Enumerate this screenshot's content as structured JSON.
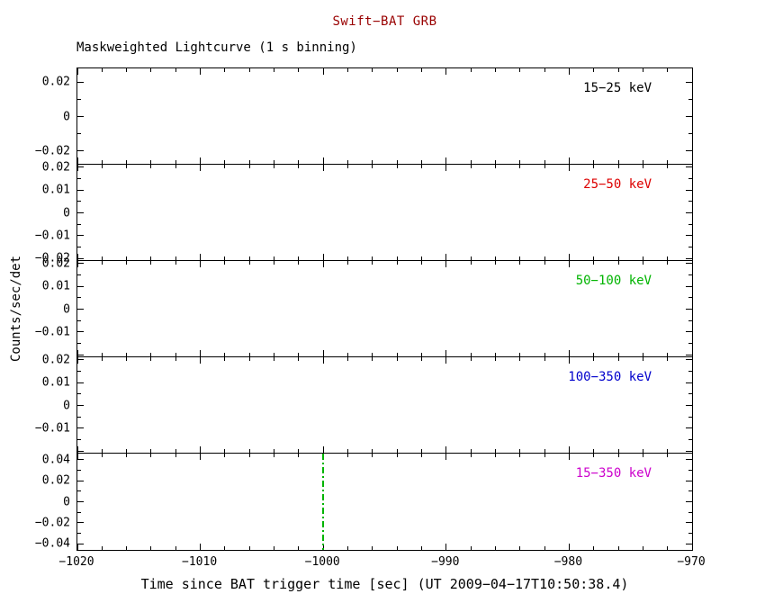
{
  "figure": {
    "title": "Swift−BAT GRB",
    "title_color": "#990000",
    "subtitle": "Maskweighted Lightcurve (1 s binning)",
    "x_axis_title": "Time since BAT trigger time [sec] (UT 2009−04−17T10:50:38.4)",
    "y_axis_title": "Counts/sec/det",
    "frame_color": "#000000",
    "background_color": "#ffffff"
  },
  "chart_data": {
    "type": "line",
    "title": "Swift-BAT GRB Maskweighted Lightcurve (1 s binning)",
    "xlabel": "Time since BAT trigger time [sec] (UT 2009-04-17T10:50:38.4)",
    "ylabel": "Counts/sec/det",
    "xlim": [
      -1020,
      -970
    ],
    "x_minor_step": 2,
    "grid": false,
    "xticks": [
      {
        "v": -1020,
        "label": "−1020"
      },
      {
        "v": -1010,
        "label": "−1010"
      },
      {
        "v": -1000,
        "label": "−1000"
      },
      {
        "v": -990,
        "label": "−990"
      },
      {
        "v": -980,
        "label": "−980"
      },
      {
        "v": -970,
        "label": "−970"
      }
    ],
    "panels": [
      {
        "label": "15−25 keV",
        "color": "#000000",
        "ylim": [
          -0.028,
          0.028
        ],
        "yticks": [
          {
            "v": 0.02,
            "label": "0.02"
          },
          {
            "v": 0,
            "label": "0"
          },
          {
            "v": -0.02,
            "label": "−0.02"
          }
        ],
        "series": [],
        "annotations": []
      },
      {
        "label": "25−50 keV",
        "color": "#dd0000",
        "ylim": [
          -0.021,
          0.021
        ],
        "yticks": [
          {
            "v": 0.02,
            "label": "0.02"
          },
          {
            "v": 0.01,
            "label": "0.01"
          },
          {
            "v": 0,
            "label": "0"
          },
          {
            "v": -0.01,
            "label": "−0.01"
          },
          {
            "v": -0.02,
            "label": "−0.02"
          }
        ],
        "series": [],
        "annotations": []
      },
      {
        "label": "50−100 keV",
        "color": "#00b400",
        "ylim": [
          -0.021,
          0.021
        ],
        "yticks": [
          {
            "v": 0.02,
            "label": "0.02"
          },
          {
            "v": 0.01,
            "label": "0.01"
          },
          {
            "v": 0,
            "label": "0"
          },
          {
            "v": -0.01,
            "label": "−0.01"
          }
        ],
        "series": [],
        "annotations": []
      },
      {
        "label": "100−350 keV",
        "color": "#0000cc",
        "ylim": [
          -0.021,
          0.021
        ],
        "yticks": [
          {
            "v": 0.02,
            "label": "0.02"
          },
          {
            "v": 0.01,
            "label": "0.01"
          },
          {
            "v": 0,
            "label": "0"
          },
          {
            "v": -0.01,
            "label": "−0.01"
          }
        ],
        "series": [],
        "annotations": []
      },
      {
        "label": "15−350 keV",
        "color": "#cc00cc",
        "ylim": [
          -0.046,
          0.046
        ],
        "yticks": [
          {
            "v": 0.04,
            "label": "0.04"
          },
          {
            "v": 0.02,
            "label": "0.02"
          },
          {
            "v": 0,
            "label": "0"
          },
          {
            "v": -0.02,
            "label": "−0.02"
          },
          {
            "v": -0.04,
            "label": "−0.04"
          }
        ],
        "series": [],
        "annotations": [
          {
            "type": "vline",
            "x": -1000,
            "color": "#00b400",
            "style": "dash-dot"
          }
        ]
      }
    ]
  }
}
